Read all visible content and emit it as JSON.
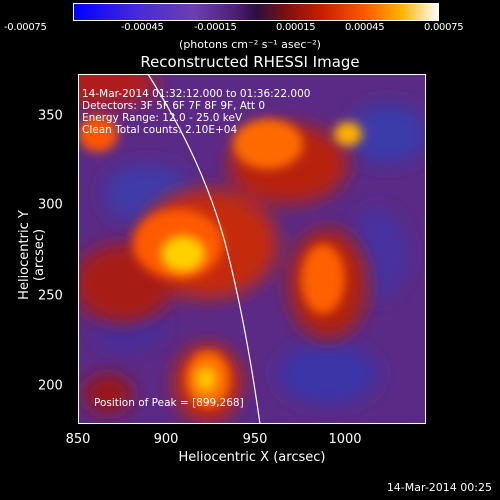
{
  "colorbar": {
    "ticks": [
      "-0.00075",
      "-0.00045",
      "-0.00015",
      "0.00015",
      "0.00045",
      "0.00075"
    ],
    "units": "(photons cm⁻² s⁻¹ asec⁻²)"
  },
  "title": "Reconstructed RHESSI Image",
  "info": {
    "time": "14-Mar-2014 01:32:12.000 to 01:36:22.000",
    "detectors": "Detectors: 3F 5F 6F 7F 8F 9F, Att 0",
    "energy": "Energy Range: 12.0 - 25.0 keV",
    "clean": "Clean  Total counts: 2.10E+04"
  },
  "peak": "Position of Peak = [899,268]",
  "axes": {
    "xlabel": "Heliocentric X (arcsec)",
    "ylabel": "Heliocentric Y (arcsec)",
    "xticks": [
      "850",
      "900",
      "950",
      "1000"
    ],
    "yticks": [
      "350",
      "300",
      "250",
      "200"
    ]
  },
  "timestamp": "14-Mar-2014 00:25"
}
